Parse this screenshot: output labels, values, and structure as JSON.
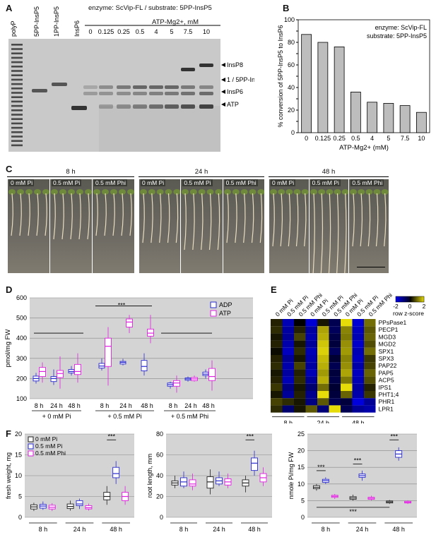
{
  "panels": {
    "A": {
      "letter": "A",
      "header": "enzyme: ScVip-FL / substrate: 5PP-InsP5",
      "atp_label": "ATP-Mg2+, mM",
      "lane_labels": [
        "polyP",
        "5PP-InsP5",
        "1PP-InsP5",
        "InsP6"
      ],
      "conc_labels": [
        "0",
        "0.125",
        "0.25",
        "0.5",
        "4",
        "5",
        "7.5",
        "10"
      ],
      "band_labels": [
        "InsP8",
        "1 / 5PP-InsP5",
        "InsP6",
        "ATP"
      ]
    },
    "B": {
      "letter": "B",
      "annotation_1": "enzyme: ScVip-FL",
      "annotation_2": "substrate: 5PP-InsP5",
      "ylabel": "% conversion of 5PP-InsP5 to InsP6",
      "xlabel": "ATP-Mg2+ (mM)"
    },
    "C": {
      "letter": "C",
      "groups": [
        {
          "time": "8 h",
          "conds": [
            "0 mM Pi",
            "0.5 mM Pi",
            "0.5 mM Phi"
          ]
        },
        {
          "time": "24 h",
          "conds": [
            "0 mM Pi",
            "0.5 mM Pi",
            "0.5 mM Phi"
          ]
        },
        {
          "time": "48 h",
          "conds": [
            "0 mM Pi",
            "0.5 mM Pi",
            "0.5 mM Phi"
          ]
        }
      ]
    },
    "D": {
      "letter": "D",
      "ylabel": "pmol/mg FW",
      "legend": [
        "ADP",
        "ATP"
      ],
      "sig": "***",
      "time_labels": [
        "8 h",
        "24 h",
        "48 h",
        "8 h",
        "24 h",
        "48 h",
        "8 h",
        "24 h",
        "48 h"
      ],
      "group_labels": [
        "+ 0 mM Pi",
        "+ 0.5 mM Pi",
        "+ 0.5 mM Phi"
      ]
    },
    "E": {
      "letter": "E",
      "col_labels": [
        "0 mM Pi",
        "0.5 mM Pi",
        "0.5 mM Phi",
        "0 mM Pi",
        "0.5 mM Pi",
        "0.5 mM Phi",
        "0 mM Pi",
        "0.5 mM Pi",
        "0.5 mM Phi"
      ],
      "genes": [
        "PPsPase1",
        "PECP1",
        "MGD3",
        "MGD2",
        "SPX1",
        "SPX3",
        "PAP22",
        "PAP5",
        "ACP5",
        "IPS1",
        "PHT1;4",
        "PHR1",
        "LPR1"
      ],
      "scale_ticks": [
        "-2",
        "0",
        "2"
      ],
      "scale_label": "row z-score",
      "time_labels": [
        "8 h",
        "24 h",
        "48 h"
      ]
    },
    "F": {
      "letter": "F",
      "legend": [
        "0 mM Pi",
        "0.5 mM Pi",
        "0.5 mM Phi"
      ],
      "ylabels": [
        "fresh weight, mg",
        "root length, mm",
        "nmole Pi/mg FW"
      ],
      "time_labels": [
        "8 h",
        "24 h",
        "48 h"
      ],
      "sig": "***"
    }
  },
  "chart_data": [
    {
      "type": "bar",
      "panel": "B",
      "categories": [
        "0",
        "0.125",
        "0.25",
        "0.5",
        "4",
        "5",
        "7.5",
        "10"
      ],
      "values": [
        87,
        80,
        76,
        36,
        27,
        26,
        24,
        18
      ],
      "xlabel": "ATP-Mg2+ (mM)",
      "ylabel": "% conversion of 5PP-InsP5 to InsP6",
      "ylim": [
        0,
        100
      ],
      "yticks": [
        "0",
        "10",
        "20",
        "30",
        "40",
        "50",
        "60",
        "70",
        "80",
        "90",
        "100"
      ]
    },
    {
      "type": "box",
      "panel": "D",
      "ylabel": "pmol/mg FW",
      "ylim": [
        100,
        600
      ],
      "yticks": [
        "100",
        "200",
        "300",
        "400",
        "500",
        "600"
      ],
      "series": [
        {
          "name": "ADP",
          "color": "#2a2ad0",
          "boxes": [
            [
              175,
              188,
              200,
              212,
              228
            ],
            [
              168,
              185,
              200,
              210,
              245
            ],
            [
              215,
              228,
              235,
              245,
              262
            ],
            [
              240,
              252,
              262,
              275,
              300
            ],
            [
              265,
              272,
              280,
              285,
              298
            ],
            [
              215,
              238,
              260,
              290,
              325
            ],
            [
              150,
              162,
              170,
              178,
              185
            ],
            [
              185,
              192,
              198,
              203,
              210
            ],
            [
              200,
              215,
              222,
              232,
              245
            ]
          ]
        },
        {
          "name": "ATP",
          "color": "#e020e0",
          "boxes": [
            [
              180,
              210,
              235,
              255,
              280
            ],
            [
              150,
              205,
              225,
              240,
              310
            ],
            [
              180,
              220,
              235,
              270,
              325
            ],
            [
              165,
              260,
              360,
              400,
              455
            ],
            [
              425,
              455,
              480,
              495,
              515
            ],
            [
              375,
              410,
              425,
              445,
              515
            ],
            [
              130,
              162,
              178,
              190,
              215
            ],
            [
              185,
              190,
              198,
              205,
              215
            ],
            [
              140,
              190,
              210,
              250,
              290
            ]
          ]
        }
      ]
    },
    {
      "type": "heatmap",
      "panel": "E",
      "rows": [
        "PPsPase1",
        "PECP1",
        "MGD3",
        "MGD2",
        "SPX1",
        "SPX3",
        "PAP22",
        "PAP5",
        "ACP5",
        "IPS1",
        "PHT1;4",
        "PHR1",
        "LPR1"
      ],
      "values": [
        [
          0.3,
          -1.5,
          0.0,
          -1.8,
          0.2,
          -0.5,
          2.0,
          -1.8,
          1.0
        ],
        [
          0.4,
          -1.3,
          0.3,
          -1.3,
          1.5,
          -0.6,
          1.2,
          -1.6,
          0.8
        ],
        [
          0.2,
          -1.2,
          0.6,
          -1.4,
          1.6,
          -0.4,
          1.1,
          -1.5,
          0.9
        ],
        [
          0.3,
          -1.4,
          0.2,
          -1.2,
          1.8,
          -0.3,
          1.3,
          -1.7,
          0.7
        ],
        [
          0.1,
          -1.6,
          0.4,
          -1.5,
          1.9,
          -0.6,
          1.4,
          -1.5,
          1.0
        ],
        [
          0.3,
          -1.2,
          0.2,
          -1.4,
          1.7,
          -0.2,
          1.2,
          -1.6,
          0.5
        ],
        [
          0.4,
          -1.4,
          0.6,
          -1.3,
          1.6,
          -0.5,
          1.3,
          -1.4,
          0.6
        ],
        [
          0.2,
          -1.3,
          0.3,
          -1.5,
          1.4,
          -0.3,
          1.5,
          -1.6,
          0.9
        ],
        [
          0.3,
          -1.5,
          0.4,
          -1.2,
          1.6,
          -0.4,
          1.1,
          -1.5,
          0.7
        ],
        [
          0.5,
          -1.0,
          0.2,
          -0.8,
          1.0,
          -0.2,
          2.0,
          -1.3,
          0.3
        ],
        [
          0.2,
          -1.2,
          0.3,
          -1.1,
          2.0,
          -0.3,
          0.9,
          -1.4,
          0.5
        ],
        [
          0.6,
          0.4,
          0.2,
          -1.0,
          0.8,
          -0.5,
          -0.3,
          -1.9,
          -1.2
        ],
        [
          0.4,
          -0.8,
          0.2,
          0.8,
          -0.9,
          2.0,
          -0.5,
          -1.2,
          -1.4
        ]
      ],
      "scale": [
        -2,
        2
      ]
    },
    {
      "type": "box",
      "panel": "F",
      "subplots": [
        {
          "ylabel": "fresh weight, mg",
          "ylim": [
            0,
            20
          ],
          "yticks": [
            "0",
            "5",
            "10",
            "15",
            "20"
          ],
          "boxes": [
            [
              1.5,
              2,
              2.5,
              3,
              3.5
            ],
            [
              1.8,
              2.2,
              2.7,
              3.1,
              3.8
            ],
            [
              1.5,
              2,
              2.4,
              2.9,
              3.4
            ],
            [
              1.6,
              2.1,
              2.6,
              3.2,
              4
            ],
            [
              2,
              2.8,
              3.2,
              4,
              4.5
            ],
            [
              1.6,
              2,
              2.3,
              2.8,
              3.3
            ],
            [
              3,
              4.2,
              5,
              6,
              7.5
            ],
            [
              8,
              9.5,
              10.5,
              12,
              13.5
            ],
            [
              3,
              4,
              5,
              6,
              7.5
            ]
          ]
        },
        {
          "ylabel": "root length, mm",
          "ylim": [
            0,
            80
          ],
          "yticks": [
            "0",
            "20",
            "40",
            "60",
            "80"
          ],
          "boxes": [
            [
              28,
              31,
              33,
              35,
              40
            ],
            [
              28,
              30,
              34,
              38,
              44
            ],
            [
              26,
              30,
              32,
              36,
              42
            ],
            [
              22,
              28,
              34,
              39,
              46
            ],
            [
              30,
              32,
              35,
              38,
              44
            ],
            [
              28,
              31,
              34,
              37,
              42
            ],
            [
              24,
              30,
              33,
              36,
              40
            ],
            [
              40,
              45,
              52,
              57,
              64
            ],
            [
              30,
              34,
              38,
              42,
              48
            ]
          ]
        },
        {
          "ylabel": "nmole Pi/mg FW",
          "ylim": [
            0,
            25
          ],
          "yticks": [
            "0",
            "5",
            "10",
            "15",
            "20",
            "25"
          ],
          "boxes": [
            [
              8,
              8.6,
              9,
              9.5,
              10
            ],
            [
              10,
              10.5,
              11,
              11.4,
              12
            ],
            [
              5.5,
              6,
              6.3,
              6.6,
              7
            ],
            [
              5,
              5.4,
              5.8,
              6.2,
              6.8
            ],
            [
              11,
              12,
              12.5,
              13,
              14
            ],
            [
              5,
              5.4,
              5.7,
              6,
              6.5
            ],
            [
              4,
              4.3,
              4.6,
              4.9,
              5.2
            ],
            [
              17,
              18,
              19,
              20,
              21
            ],
            [
              4,
              4.3,
              4.5,
              4.8,
              5.1
            ]
          ]
        }
      ],
      "colors": [
        "#222222",
        "#2a2ad0",
        "#e020e0"
      ]
    }
  ]
}
